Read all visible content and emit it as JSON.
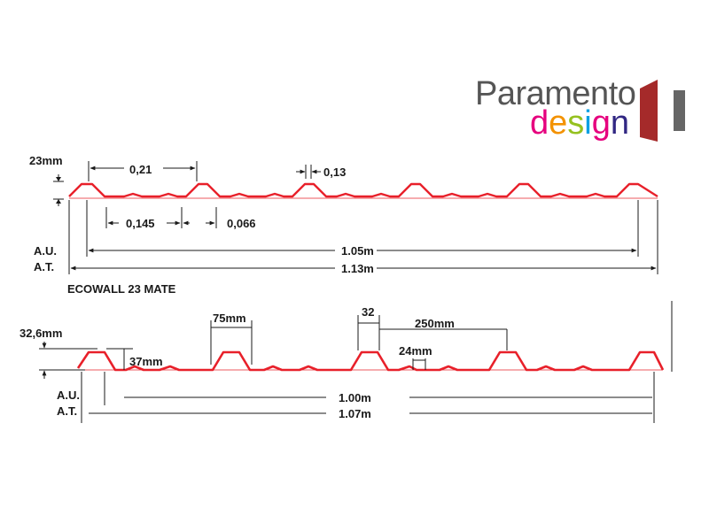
{
  "logo": {
    "word1": "Paramento",
    "word2": "design",
    "colors": {
      "text": "#555555",
      "d": "#e6007e",
      "e": "#f39200",
      "s": "#95c11f",
      "i": "#009fe3",
      "g": "#e6007e",
      "n": "#312783",
      "door": "#a52a2a",
      "bar": "#666666"
    }
  },
  "profile1": {
    "height_label": "23mm",
    "pitch_label": "0,21",
    "crest_label": "0,13",
    "valley_label": "0,145",
    "rib_label": "0,066",
    "au_label": "A.U.",
    "at_label": "A.T.",
    "useful_width": "1.05m",
    "total_width": "1.13m",
    "name": "ECOWALL 23  MATE"
  },
  "profile2": {
    "height_label": "32,6mm",
    "base_label": "37mm",
    "top_label": "75mm",
    "crest_label": "32",
    "pitch_label": "250mm",
    "rib_label": "24mm",
    "au_label": "A.U.",
    "at_label": "A.T.",
    "useful_width": "1.00m",
    "total_width": "1.07m"
  },
  "colors": {
    "profile": "#e8202a",
    "dimension": "#1a1a1a"
  }
}
